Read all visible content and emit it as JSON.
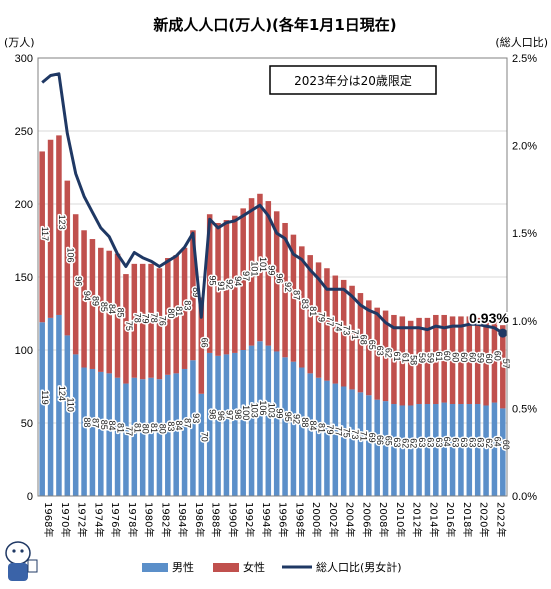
{
  "chart_data": {
    "type": "bar",
    "title": "新成人人口(万人)(各年1月1日現在)",
    "ylabel_left": "(万人)",
    "ylabel_right": "(総人口比)",
    "ylim": [
      0,
      300
    ],
    "yticks": [
      0,
      50,
      100,
      150,
      200,
      250,
      300
    ],
    "y2lim": [
      0,
      0.025
    ],
    "y2ticks": [
      "0.0%",
      "0.5%",
      "1.0%",
      "1.5%",
      "2.0%",
      "2.5%"
    ],
    "categories": [
      "1968",
      "1969",
      "1970",
      "1971",
      "1972",
      "1973",
      "1974",
      "1975",
      "1976",
      "1977",
      "1978",
      "1979",
      "1980",
      "1981",
      "1982",
      "1983",
      "1984",
      "1985",
      "1986",
      "1987",
      "1988",
      "1989",
      "1990",
      "1991",
      "1992",
      "1993",
      "1994",
      "1995",
      "1996",
      "1997",
      "1998",
      "1999",
      "2000",
      "2001",
      "2002",
      "2003",
      "2004",
      "2005",
      "2006",
      "2007",
      "2008",
      "2009",
      "2010",
      "2011",
      "2012",
      "2013",
      "2014",
      "2015",
      "2016",
      "2017",
      "2018",
      "2019",
      "2020",
      "2021",
      "2022",
      "2023"
    ],
    "x_tick_labels": [
      "1968年",
      "1970年",
      "1972年",
      "1974年",
      "1976年",
      "1978年",
      "1980年",
      "1982年",
      "1984年",
      "1986年",
      "1988年",
      "1990年",
      "1992年",
      "1994年",
      "1996年",
      "1998年",
      "2000年",
      "2002年",
      "2004年",
      "2006年",
      "2008年",
      "2010年",
      "2012年",
      "2014年",
      "2016年",
      "2018年",
      "2020年",
      "2022年"
    ],
    "series": [
      {
        "name": "男性",
        "color": "#5b8fc9",
        "values": [
          119,
          122,
          124,
          110,
          97,
          88,
          87,
          85,
          84,
          81,
          77,
          81,
          80,
          81,
          80,
          83,
          84,
          87,
          93,
          70,
          98,
          96,
          97,
          98,
          100,
          103,
          106,
          103,
          99,
          95,
          92,
          88,
          84,
          81,
          79,
          77,
          75,
          73,
          71,
          69,
          66,
          65,
          63,
          62,
          62,
          63,
          63,
          63,
          64,
          63,
          63,
          63,
          63,
          62,
          64,
          60
        ]
      },
      {
        "name": "女性",
        "color": "#c0504d",
        "values": [
          117,
          122,
          123,
          106,
          96,
          94,
          89,
          85,
          84,
          85,
          75,
          78,
          79,
          78,
          76,
          80,
          81,
          83,
          89,
          66,
          95,
          91,
          92,
          94,
          97,
          101,
          101,
          99,
          96,
          92,
          87,
          83,
          81,
          79,
          77,
          74,
          73,
          71,
          68,
          65,
          63,
          62,
          61,
          61,
          58,
          59,
          59,
          61,
          60,
          60,
          60,
          60,
          59,
          60,
          60,
          57
        ]
      },
      {
        "name": "総人口比(男女計)",
        "color": "#1f3864",
        "axis": "right",
        "values": [
          0.0236,
          0.024,
          0.0241,
          0.0207,
          0.0184,
          0.0171,
          0.0162,
          0.0153,
          0.0148,
          0.0138,
          0.0131,
          0.0139,
          0.0136,
          0.0134,
          0.0131,
          0.0134,
          0.0137,
          0.0142,
          0.015,
          0.0102,
          0.0158,
          0.0153,
          0.0156,
          0.0157,
          0.016,
          0.0163,
          0.0166,
          0.016,
          0.015,
          0.0147,
          0.0138,
          0.0135,
          0.0129,
          0.0124,
          0.0118,
          0.0118,
          0.0118,
          0.0114,
          0.0109,
          0.0106,
          0.0104,
          0.0099,
          0.0096,
          0.0096,
          0.0096,
          0.0096,
          0.0095,
          0.0097,
          0.0096,
          0.0097,
          0.0097,
          0.0098,
          0.0098,
          0.0097,
          0.0096,
          0.0093
        ]
      }
    ],
    "male_labels": [
      "119",
      "",
      "124",
      "110",
      "",
      "88",
      "87",
      "85",
      "84",
      "81",
      "77",
      "81",
      "80",
      "81",
      "80",
      "83",
      "84",
      "87",
      "93",
      "70",
      "98",
      "96",
      "97",
      "98",
      "100",
      "103",
      "106",
      "103",
      "99",
      "95",
      "92",
      "88",
      "84",
      "81",
      "79",
      "77",
      "75",
      "73",
      "71",
      "69",
      "66",
      "65",
      "63",
      "62",
      "62",
      "63",
      "63",
      "63",
      "64",
      "63",
      "63",
      "63",
      "63",
      "62",
      "64",
      "60"
    ],
    "female_labels": [
      "117",
      "",
      "123",
      "106",
      "96",
      "94",
      "89",
      "85",
      "84",
      "85",
      "75",
      "78",
      "79",
      "78",
      "76",
      "80",
      "81",
      "83",
      "89",
      "66",
      "95",
      "91",
      "92",
      "94",
      "97",
      "101",
      "101",
      "99",
      "96",
      "92",
      "87",
      "83",
      "81",
      "79",
      "77",
      "74",
      "73",
      "71",
      "68",
      "65",
      "63",
      "62",
      "61",
      "61",
      "58",
      "59",
      "59",
      "61",
      "60",
      "60",
      "60",
      "60",
      "59",
      "60",
      "60",
      "57"
    ],
    "last_point_label": "0.93%",
    "annotation": "2023年分は20歳限定",
    "legend": {
      "placement": "bottom",
      "items": [
        "男性",
        "女性",
        "総人口比(男女計)"
      ]
    },
    "grid": true
  }
}
